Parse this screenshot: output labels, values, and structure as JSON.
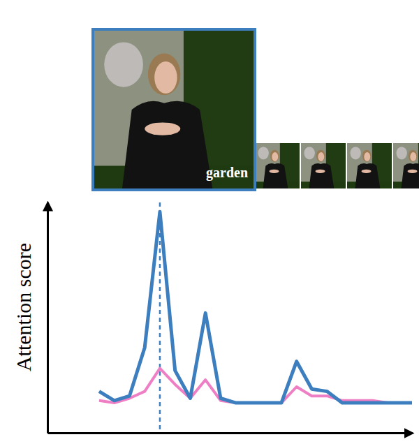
{
  "chart_data": {
    "type": "line",
    "y_label": "Attention score",
    "tick_labels": false,
    "x": [
      0,
      1,
      2,
      3,
      4,
      5,
      6,
      7,
      8,
      9,
      10,
      11,
      12,
      13,
      14,
      15,
      16,
      17,
      18,
      19,
      20,
      21
    ],
    "xlim": [
      -3.4,
      20.6
    ],
    "ylim": [
      0,
      1
    ],
    "series": [
      {
        "color": "#3d7ebf",
        "values": [
          0.18,
          0.14,
          0.16,
          0.37,
          0.96,
          0.27,
          0.15,
          0.52,
          0.15,
          0.13,
          0.13,
          0.13,
          0.13,
          0.31,
          0.19,
          0.18,
          0.13,
          0.13,
          0.13,
          0.13,
          0.13,
          0.13
        ]
      },
      {
        "color": "#ef7fc4",
        "values": [
          0.14,
          0.13,
          0.15,
          0.18,
          0.28,
          0.21,
          0.15,
          0.23,
          0.14,
          0.13,
          0.13,
          0.13,
          0.13,
          0.2,
          0.16,
          0.16,
          0.14,
          0.14,
          0.14,
          0.13,
          0.13,
          0.13
        ]
      }
    ],
    "annotations": [
      {
        "x": 4,
        "text": "garden"
      }
    ]
  }
}
